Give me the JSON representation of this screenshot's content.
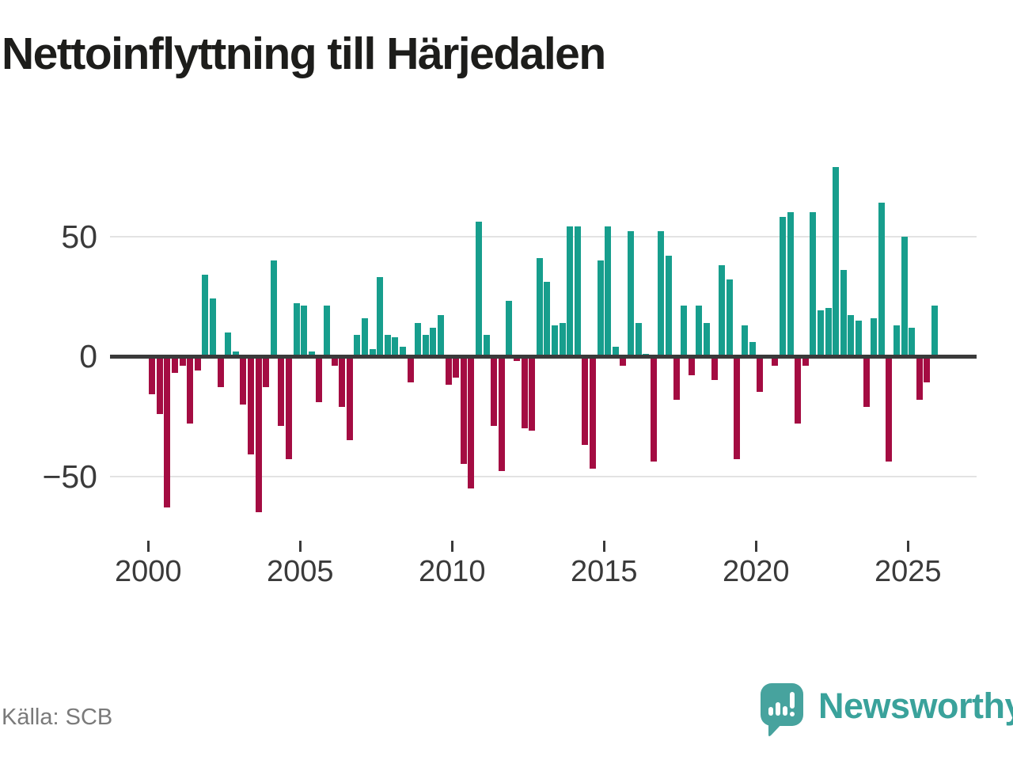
{
  "header": {
    "title": "Nettoinflyttning till Härjedalen"
  },
  "footer": {
    "source": "Källa: SCB",
    "logo_text": "Newsworthy"
  },
  "colors": {
    "positive_bar": "#179e8d",
    "negative_bar": "#a40c42",
    "zero_line": "#3a3a3a",
    "gridline": "#e3e3e3",
    "axis_text": "#3a3a3a",
    "title_text": "#1d1d1b",
    "source_text": "#7a7a7a",
    "logo_teal": "#47a39e"
  },
  "chart_data": {
    "type": "bar",
    "title": "Nettoinflyttning till Härjedalen",
    "x_unit": "quarter",
    "start": "2000Q1",
    "end": "2025Q4",
    "grid": "horizontal",
    "ylim": [
      -70,
      85
    ],
    "yticks": [
      {
        "label": "50",
        "value": 50
      },
      {
        "label": "0",
        "value": 0
      },
      {
        "label": "−50",
        "value": -50
      }
    ],
    "xticks": [
      "2000",
      "2005",
      "2010",
      "2015",
      "2020",
      "2025"
    ],
    "series": [
      {
        "name": "Nettoinflyttning",
        "points": [
          [
            "2000Q1",
            -16
          ],
          [
            "2000Q2",
            -24
          ],
          [
            "2000Q3",
            -63
          ],
          [
            "2000Q4",
            -7
          ],
          [
            "2001Q1",
            -4
          ],
          [
            "2001Q2",
            -28
          ],
          [
            "2001Q3",
            -6
          ],
          [
            "2001Q4",
            34
          ],
          [
            "2002Q1",
            24
          ],
          [
            "2002Q2",
            -13
          ],
          [
            "2002Q3",
            10
          ],
          [
            "2002Q4",
            2
          ],
          [
            "2003Q1",
            -20
          ],
          [
            "2003Q2",
            -41
          ],
          [
            "2003Q3",
            -65
          ],
          [
            "2003Q4",
            -13
          ],
          [
            "2004Q1",
            40
          ],
          [
            "2004Q2",
            -29
          ],
          [
            "2004Q3",
            -43
          ],
          [
            "2004Q4",
            22
          ],
          [
            "2005Q1",
            21
          ],
          [
            "2005Q2",
            2
          ],
          [
            "2005Q3",
            -19
          ],
          [
            "2005Q4",
            21
          ],
          [
            "2006Q1",
            -4
          ],
          [
            "2006Q2",
            -21
          ],
          [
            "2006Q3",
            -35
          ],
          [
            "2006Q4",
            9
          ],
          [
            "2007Q1",
            16
          ],
          [
            "2007Q2",
            3
          ],
          [
            "2007Q3",
            33
          ],
          [
            "2007Q4",
            9
          ],
          [
            "2008Q1",
            8
          ],
          [
            "2008Q2",
            4
          ],
          [
            "2008Q3",
            -11
          ],
          [
            "2008Q4",
            14
          ],
          [
            "2009Q1",
            9
          ],
          [
            "2009Q2",
            12
          ],
          [
            "2009Q3",
            17
          ],
          [
            "2009Q4",
            -12
          ],
          [
            "2010Q1",
            -9
          ],
          [
            "2010Q2",
            -45
          ],
          [
            "2010Q3",
            -55
          ],
          [
            "2010Q4",
            56
          ],
          [
            "2011Q1",
            9
          ],
          [
            "2011Q2",
            -29
          ],
          [
            "2011Q3",
            -48
          ],
          [
            "2011Q4",
            23
          ],
          [
            "2012Q1",
            -2
          ],
          [
            "2012Q2",
            -30
          ],
          [
            "2012Q3",
            -31
          ],
          [
            "2012Q4",
            41
          ],
          [
            "2013Q1",
            31
          ],
          [
            "2013Q2",
            13
          ],
          [
            "2013Q3",
            14
          ],
          [
            "2013Q4",
            54
          ],
          [
            "2014Q1",
            54
          ],
          [
            "2014Q2",
            -37
          ],
          [
            "2014Q3",
            -47
          ],
          [
            "2014Q4",
            40
          ],
          [
            "2015Q1",
            54
          ],
          [
            "2015Q2",
            4
          ],
          [
            "2015Q3",
            -4
          ],
          [
            "2015Q4",
            52
          ],
          [
            "2016Q1",
            14
          ],
          [
            "2016Q2",
            1
          ],
          [
            "2016Q3",
            -44
          ],
          [
            "2016Q4",
            52
          ],
          [
            "2017Q1",
            42
          ],
          [
            "2017Q2",
            -18
          ],
          [
            "2017Q3",
            21
          ],
          [
            "2017Q4",
            -8
          ],
          [
            "2018Q1",
            21
          ],
          [
            "2018Q2",
            14
          ],
          [
            "2018Q3",
            -10
          ],
          [
            "2018Q4",
            38
          ],
          [
            "2019Q1",
            32
          ],
          [
            "2019Q2",
            -43
          ],
          [
            "2019Q3",
            13
          ],
          [
            "2019Q4",
            6
          ],
          [
            "2020Q1",
            -15
          ],
          [
            "2020Q2",
            0
          ],
          [
            "2020Q3",
            -4
          ],
          [
            "2020Q4",
            58
          ],
          [
            "2021Q1",
            60
          ],
          [
            "2021Q2",
            -28
          ],
          [
            "2021Q3",
            -4
          ],
          [
            "2021Q4",
            60
          ],
          [
            "2022Q1",
            19
          ],
          [
            "2022Q2",
            20
          ],
          [
            "2022Q3",
            79
          ],
          [
            "2022Q4",
            36
          ],
          [
            "2023Q1",
            17
          ],
          [
            "2023Q2",
            15
          ],
          [
            "2023Q3",
            -21
          ],
          [
            "2023Q4",
            16
          ],
          [
            "2024Q1",
            64
          ],
          [
            "2024Q2",
            -44
          ],
          [
            "2024Q3",
            13
          ],
          [
            "2024Q4",
            50
          ],
          [
            "2025Q1",
            12
          ],
          [
            "2025Q2",
            -18
          ],
          [
            "2025Q3",
            -11
          ],
          [
            "2025Q4",
            21
          ]
        ]
      }
    ],
    "legend": "none"
  }
}
